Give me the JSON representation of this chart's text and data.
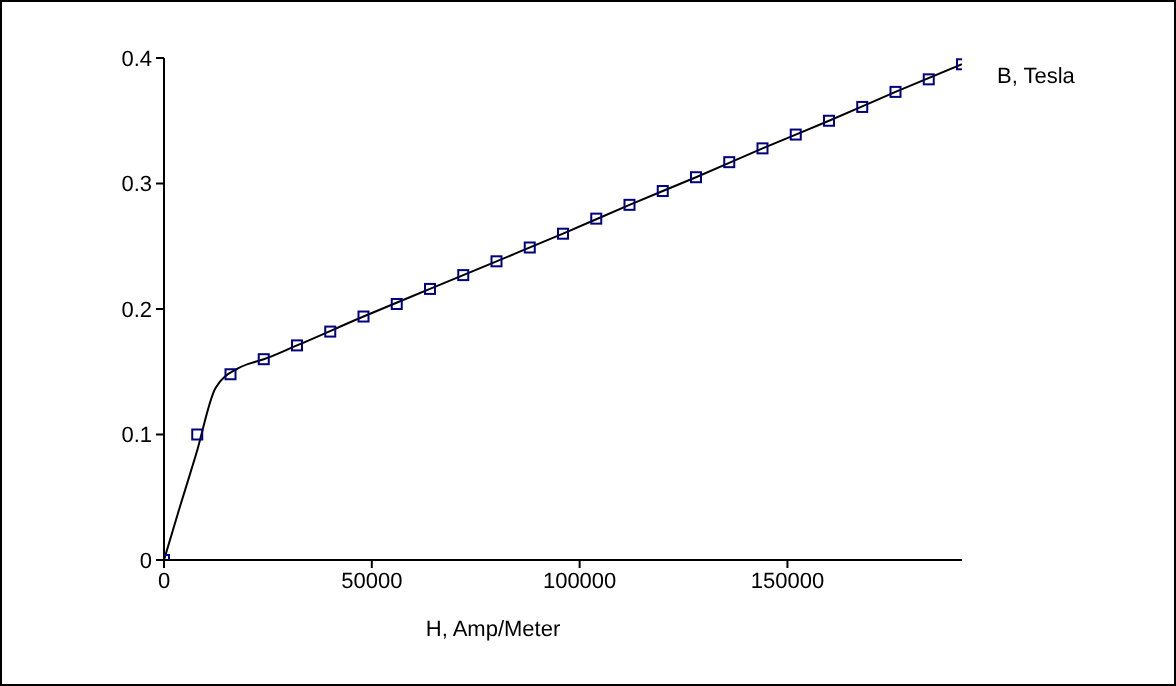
{
  "chart_data": {
    "type": "scatter",
    "xlabel": "H, Amp/Meter",
    "xlim": [
      0,
      192000
    ],
    "xticks": [
      0,
      50000,
      100000,
      150000
    ],
    "ylim": [
      0,
      0.4
    ],
    "yticks": [
      0,
      0.1,
      0.2,
      0.3,
      0.4
    ],
    "grid": false,
    "legend": false,
    "x": [
      0,
      8000,
      16000,
      24000,
      32000,
      40000,
      48000,
      56000,
      64000,
      72000,
      80000,
      88000,
      96000,
      104000,
      112000,
      120000,
      128000,
      136000,
      144000,
      152000,
      160000,
      168000,
      176000,
      184000,
      192000
    ],
    "series": [
      {
        "name": "B, Tesla",
        "color": "#000080",
        "marker": "square",
        "values": [
          0,
          0.1,
          0.148,
          0.16,
          0.171,
          0.182,
          0.194,
          0.204,
          0.216,
          0.227,
          0.238,
          0.249,
          0.26,
          0.272,
          0.283,
          0.294,
          0.305,
          0.317,
          0.328,
          0.339,
          0.35,
          0.361,
          0.373,
          0.383,
          0.395
        ]
      },
      {
        "type": "line",
        "color": "#000000",
        "marker": "none",
        "line_style": "solid",
        "x": [
          0,
          3700,
          7700,
          12400,
          18000,
          22000,
          24000,
          32000,
          48000,
          64000,
          80000,
          96000,
          112000,
          128000,
          144000,
          160000,
          176000,
          192000
        ],
        "values": [
          0,
          0.041,
          0.084,
          0.137,
          0.153,
          0.158,
          0.16,
          0.171,
          0.194,
          0.216,
          0.238,
          0.26,
          0.283,
          0.305,
          0.328,
          0.35,
          0.373,
          0.395
        ]
      }
    ]
  }
}
